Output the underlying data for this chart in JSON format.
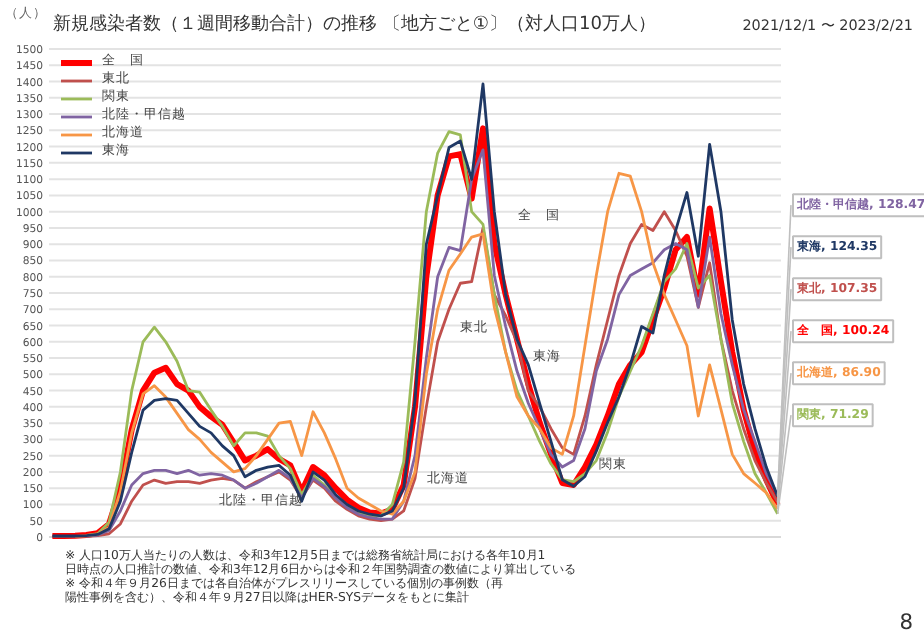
{
  "chart_data": {
    "type": "line",
    "title": "新規感染者数（１週間移動合計）の推移 〔地方ごと①〕（対人口10万人）",
    "subtitle": "2021/12/1 〜 2023/2/21",
    "ylabel": "（人）",
    "categories": [
      null,
      null,
      null,
      null,
      null,
      null,
      null,
      null,
      null,
      null,
      null,
      null,
      null,
      null,
      null,
      null,
      null,
      null,
      null,
      null,
      null,
      null,
      null,
      null,
      null,
      null,
      null,
      null,
      null,
      null,
      null,
      null,
      null,
      null,
      null,
      null,
      null,
      null,
      null,
      null,
      null,
      null,
      null,
      null,
      null,
      null,
      null,
      null,
      null,
      null,
      null,
      null,
      null,
      null,
      null,
      null,
      null,
      null,
      null,
      null,
      null,
      null,
      null,
      null,
      null
    ],
    "series": [
      {
        "name": "全　国",
        "color": "#ff0000",
        "values": [
          3,
          3,
          4,
          6,
          12,
          40,
          150,
          330,
          450,
          505,
          520,
          470,
          450,
          400,
          370,
          345,
          290,
          235,
          250,
          270,
          240,
          220,
          140,
          215,
          190,
          150,
          115,
          90,
          75,
          72,
          85,
          160,
          400,
          800,
          1050,
          1170,
          1177,
          1040,
          1256,
          902,
          745,
          608,
          470,
          352,
          254,
          166,
          160,
          215,
          284,
          372,
          470,
          529,
          568,
          667,
          765,
          883,
          922,
          745,
          1010,
          785,
          568,
          392,
          264,
          176,
          100.24
        ],
        "value_labels": [
          null,
          null,
          null,
          null,
          null,
          null,
          null,
          null,
          null,
          null,
          null,
          null,
          null,
          null,
          null,
          null,
          null,
          null,
          null,
          null,
          null,
          null,
          null,
          null,
          null,
          null,
          null,
          null,
          null,
          null,
          null,
          null,
          null,
          null,
          null,
          null,
          null,
          null,
          null,
          null,
          null,
          null,
          null,
          null,
          null,
          null,
          null,
          null,
          null,
          null,
          null,
          null,
          null,
          null,
          null,
          null,
          null,
          null,
          null,
          null,
          null,
          null,
          null,
          null,
          "全　国, 100.24"
        ]
      },
      {
        "name": "東北",
        "color": "#c0504d",
        "values": [
          2,
          2,
          2,
          2,
          4,
          10,
          40,
          110,
          160,
          175,
          165,
          170,
          170,
          165,
          175,
          180,
          175,
          150,
          170,
          185,
          200,
          175,
          120,
          175,
          150,
          110,
          85,
          65,
          55,
          50,
          55,
          80,
          180,
          400,
          600,
          700,
          780,
          785,
          950,
          745,
          680,
          600,
          450,
          400,
          333,
          274,
          254,
          372,
          529,
          667,
          804,
          902,
          961,
          942,
          1000,
          942,
          863,
          706,
          843,
          608,
          450,
          333,
          235,
          166,
          107.35
        ],
        "value_labels": [
          null,
          null,
          null,
          null,
          null,
          null,
          null,
          null,
          null,
          null,
          null,
          null,
          null,
          null,
          null,
          null,
          null,
          null,
          null,
          null,
          null,
          null,
          null,
          null,
          null,
          null,
          null,
          null,
          null,
          null,
          null,
          null,
          null,
          null,
          null,
          null,
          null,
          null,
          null,
          null,
          null,
          null,
          null,
          null,
          null,
          null,
          null,
          null,
          null,
          null,
          null,
          null,
          null,
          null,
          null,
          null,
          null,
          null,
          null,
          null,
          null,
          null,
          null,
          null,
          "東北, 107.35"
        ]
      },
      {
        "name": "関東",
        "color": "#9bbb59",
        "values": [
          null,
          null,
          null,
          5,
          10,
          45,
          200,
          450,
          600,
          645,
          600,
          540,
          450,
          445,
          390,
          340,
          280,
          320,
          320,
          310,
          250,
          210,
          130,
          190,
          160,
          120,
          95,
          75,
          65,
          65,
          100,
          230,
          600,
          1000,
          1180,
          1246,
          1236,
          1000,
          961,
          745,
          568,
          450,
          372,
          294,
          225,
          176,
          170,
          195,
          235,
          323,
          431,
          510,
          588,
          686,
          785,
          824,
          902,
          765,
          804,
          608,
          411,
          294,
          195,
          136,
          71.29
        ],
        "value_labels": [
          null,
          null,
          null,
          null,
          null,
          null,
          null,
          null,
          null,
          null,
          null,
          null,
          null,
          null,
          null,
          null,
          null,
          null,
          null,
          null,
          null,
          null,
          null,
          null,
          null,
          null,
          null,
          null,
          null,
          null,
          null,
          null,
          null,
          null,
          null,
          null,
          null,
          null,
          null,
          null,
          null,
          null,
          null,
          null,
          null,
          null,
          null,
          null,
          null,
          null,
          null,
          null,
          null,
          null,
          null,
          null,
          null,
          null,
          null,
          null,
          null,
          null,
          null,
          null,
          "関東, 71.29"
        ]
      },
      {
        "name": "北陸・甲信越",
        "color": "#8064a2",
        "values": [
          null,
          null,
          null,
          3,
          6,
          20,
          80,
          160,
          195,
          205,
          205,
          195,
          205,
          190,
          195,
          190,
          175,
          150,
          165,
          185,
          205,
          180,
          120,
          180,
          155,
          120,
          90,
          70,
          60,
          55,
          55,
          110,
          250,
          550,
          800,
          890,
          880,
          1100,
          1190,
          804,
          647,
          510,
          411,
          333,
          254,
          215,
          235,
          333,
          510,
          608,
          745,
          804,
          824,
          843,
          883,
          902,
          883,
          706,
          922,
          686,
          529,
          392,
          294,
          195,
          128.47
        ],
        "value_labels": [
          null,
          null,
          null,
          null,
          null,
          null,
          null,
          null,
          null,
          null,
          null,
          null,
          null,
          null,
          null,
          null,
          null,
          null,
          null,
          null,
          null,
          null,
          null,
          null,
          null,
          null,
          null,
          null,
          null,
          null,
          null,
          null,
          null,
          null,
          null,
          null,
          null,
          null,
          null,
          null,
          null,
          null,
          null,
          null,
          null,
          null,
          null,
          null,
          null,
          null,
          null,
          null,
          null,
          null,
          null,
          null,
          null,
          null,
          null,
          null,
          null,
          null,
          null,
          null,
          "北陸・甲信越, 128.47"
        ]
      },
      {
        "name": "北海道",
        "color": "#f79646",
        "values": [
          null,
          null,
          2,
          4,
          8,
          30,
          140,
          320,
          440,
          465,
          430,
          380,
          330,
          300,
          260,
          230,
          200,
          210,
          250,
          300,
          350,
          355,
          250,
          385,
          320,
          240,
          150,
          120,
          100,
          80,
          70,
          110,
          200,
          500,
          700,
          820,
          870,
          922,
          932,
          706,
          568,
          431,
          372,
          333,
          274,
          254,
          372,
          588,
          804,
          1000,
          1118,
          1109,
          1000,
          843,
          745,
          667,
          588,
          372,
          529,
          392,
          254,
          195,
          166,
          136,
          86.9
        ],
        "value_labels": [
          null,
          null,
          null,
          null,
          null,
          null,
          null,
          null,
          null,
          null,
          null,
          null,
          null,
          null,
          null,
          null,
          null,
          null,
          null,
          null,
          null,
          null,
          null,
          null,
          null,
          null,
          null,
          null,
          null,
          null,
          null,
          null,
          null,
          null,
          null,
          null,
          null,
          null,
          null,
          null,
          null,
          null,
          null,
          null,
          null,
          null,
          null,
          null,
          null,
          null,
          null,
          null,
          null,
          null,
          null,
          null,
          null,
          null,
          null,
          null,
          null,
          null,
          null,
          null,
          "北海道, 86.90"
        ]
      },
      {
        "name": "東海",
        "color": "#1f3864",
        "values": [
          3,
          3,
          3,
          4,
          8,
          25,
          110,
          260,
          390,
          420,
          425,
          420,
          380,
          340,
          320,
          280,
          250,
          185,
          205,
          215,
          220,
          190,
          110,
          200,
          175,
          130,
          100,
          80,
          70,
          65,
          80,
          150,
          420,
          900,
          1050,
          1197,
          1217,
          1099,
          1393,
          1000,
          745,
          608,
          529,
          411,
          294,
          176,
          156,
          186,
          264,
          352,
          431,
          529,
          647,
          627,
          804,
          942,
          1059,
          863,
          1207,
          1000,
          667,
          470,
          333,
          215,
          124.35
        ],
        "value_labels": [
          null,
          null,
          null,
          null,
          null,
          null,
          null,
          null,
          null,
          null,
          null,
          null,
          null,
          null,
          null,
          null,
          null,
          null,
          null,
          null,
          null,
          null,
          null,
          null,
          null,
          null,
          null,
          null,
          null,
          null,
          null,
          null,
          null,
          null,
          null,
          null,
          null,
          null,
          null,
          null,
          null,
          null,
          null,
          null,
          null,
          null,
          null,
          null,
          null,
          null,
          null,
          null,
          null,
          null,
          null,
          null,
          null,
          null,
          null,
          null,
          null,
          null,
          null,
          null,
          "東海, 124.35"
        ]
      }
    ],
    "ylim": [
      0,
      1500
    ],
    "yticks": [
      0,
      50,
      100,
      150,
      200,
      250,
      300,
      350,
      400,
      450,
      500,
      550,
      600,
      650,
      700,
      750,
      800,
      850,
      900,
      950,
      1000,
      1050,
      1100,
      1150,
      1200,
      1250,
      1300,
      1350,
      1400,
      1450,
      1500
    ],
    "tick_labels": "y",
    "grid": "y",
    "legend": "top left",
    "marker": "none",
    "line_style": "solid",
    "annotations": [
      "全　国",
      "東北",
      "東海",
      "北海道",
      "北陸・甲信越",
      "関東",
      "※ 人口10万人当たりの人数は、令和3年12月5日までは総務省統計局における各年10月1日時点の人口推計の数値、令和3年12月6日からは令和２年国勢調査の数値により算出している",
      "※ 令和４年９月26日までは各自治体がプレスリリースしている個別の事例数（再陽性事例を含む）、令和４年９月27日以降はHER-SYSデータをもとに集計",
      "8"
    ]
  }
}
